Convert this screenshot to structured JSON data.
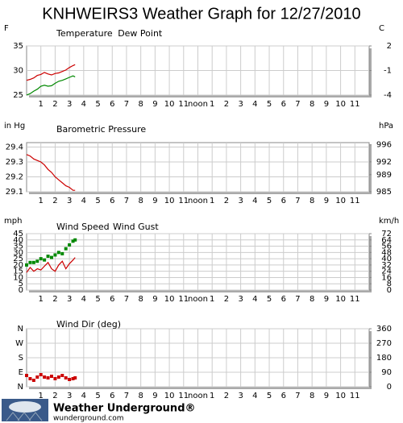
{
  "title": "KNHWEIRS3 Weather Graph for 12/27/2010",
  "logo": {
    "name": "Weather Underground®",
    "url": "wunderground.com"
  },
  "chart_data": [
    {
      "type": "line",
      "ylabel": "F",
      "y2label": "C",
      "xlim": [
        0,
        24
      ],
      "xticks": [
        {
          "value": 1,
          "label": "1"
        },
        {
          "value": 2,
          "label": "2"
        },
        {
          "value": 3,
          "label": "3"
        },
        {
          "value": 4,
          "label": "4"
        },
        {
          "value": 5,
          "label": "5"
        },
        {
          "value": 6,
          "label": "6"
        },
        {
          "value": 7,
          "label": "7"
        },
        {
          "value": 8,
          "label": "8"
        },
        {
          "value": 9,
          "label": "9"
        },
        {
          "value": 10,
          "label": "10"
        },
        {
          "value": 11,
          "label": "11"
        },
        {
          "value": 12,
          "label": "noon"
        },
        {
          "value": 13,
          "label": "1"
        },
        {
          "value": 14,
          "label": "2"
        },
        {
          "value": 15,
          "label": "3"
        },
        {
          "value": 16,
          "label": "4"
        },
        {
          "value": 17,
          "label": "5"
        },
        {
          "value": 18,
          "label": "6"
        },
        {
          "value": 19,
          "label": "7"
        },
        {
          "value": 20,
          "label": "8"
        },
        {
          "value": 21,
          "label": "9"
        },
        {
          "value": 22,
          "label": "10"
        },
        {
          "value": 23,
          "label": "11"
        }
      ],
      "ylim": [
        25,
        35
      ],
      "yticks": [
        25,
        30,
        35
      ],
      "y2lim": [
        -4,
        2
      ],
      "y2ticks": [
        -4,
        -1,
        2
      ],
      "grid": true,
      "x": [
        0,
        0.25,
        0.5,
        0.75,
        1,
        1.25,
        1.5,
        1.75,
        2,
        2.25,
        2.5,
        2.75,
        3,
        3.25,
        3.4
      ],
      "series": [
        {
          "name": "Temperature",
          "color": "#cc0000",
          "values": [
            28,
            28.2,
            28.5,
            29,
            29.2,
            29.6,
            29.3,
            29.1,
            29.4,
            29.5,
            29.8,
            30.1,
            30.6,
            31,
            31.2
          ]
        },
        {
          "name": "Dew Point",
          "color": "#008800",
          "values": [
            25,
            25.3,
            25.8,
            26.2,
            26.8,
            27,
            26.8,
            26.9,
            27.4,
            27.8,
            28,
            28.3,
            28.6,
            28.9,
            28.7
          ]
        }
      ]
    },
    {
      "type": "line",
      "ylabel": "in Hg",
      "y2label": "hPa",
      "xlim": [
        0,
        24
      ],
      "xticks": [
        {
          "value": 1,
          "label": "1"
        },
        {
          "value": 2,
          "label": "2"
        },
        {
          "value": 3,
          "label": "3"
        },
        {
          "value": 4,
          "label": "4"
        },
        {
          "value": 5,
          "label": "5"
        },
        {
          "value": 6,
          "label": "6"
        },
        {
          "value": 7,
          "label": "7"
        },
        {
          "value": 8,
          "label": "8"
        },
        {
          "value": 9,
          "label": "9"
        },
        {
          "value": 10,
          "label": "10"
        },
        {
          "value": 11,
          "label": "11"
        },
        {
          "value": 12,
          "label": "noon"
        },
        {
          "value": 13,
          "label": "1"
        },
        {
          "value": 14,
          "label": "2"
        },
        {
          "value": 15,
          "label": "3"
        },
        {
          "value": 16,
          "label": "4"
        },
        {
          "value": 17,
          "label": "5"
        },
        {
          "value": 18,
          "label": "6"
        },
        {
          "value": 19,
          "label": "7"
        },
        {
          "value": 20,
          "label": "8"
        },
        {
          "value": 21,
          "label": "9"
        },
        {
          "value": 22,
          "label": "10"
        },
        {
          "value": 23,
          "label": "11"
        }
      ],
      "ylim": [
        29.1,
        29.43
      ],
      "yticks": [
        29.1,
        29.2,
        29.3,
        29.4
      ],
      "y2lim": [
        985,
        996.5
      ],
      "y2ticks": [
        985,
        989,
        992,
        996
      ],
      "grid": true,
      "x": [
        0,
        0.25,
        0.5,
        0.75,
        1,
        1.25,
        1.5,
        1.75,
        2,
        2.25,
        2.5,
        2.75,
        3,
        3.25,
        3.4
      ],
      "series": [
        {
          "name": "Barometric Pressure",
          "color": "#cc0000",
          "values": [
            29.35,
            29.34,
            29.32,
            29.31,
            29.3,
            29.28,
            29.25,
            29.23,
            29.2,
            29.18,
            29.16,
            29.14,
            29.13,
            29.11,
            29.11
          ]
        }
      ]
    },
    {
      "type": "line",
      "ylabel": "mph",
      "y2label": "km/h",
      "xlim": [
        0,
        24
      ],
      "xticks": [
        {
          "value": 1,
          "label": "1"
        },
        {
          "value": 2,
          "label": "2"
        },
        {
          "value": 3,
          "label": "3"
        },
        {
          "value": 4,
          "label": "4"
        },
        {
          "value": 5,
          "label": "5"
        },
        {
          "value": 6,
          "label": "6"
        },
        {
          "value": 7,
          "label": "7"
        },
        {
          "value": 8,
          "label": "8"
        },
        {
          "value": 9,
          "label": "9"
        },
        {
          "value": 10,
          "label": "10"
        },
        {
          "value": 11,
          "label": "11"
        },
        {
          "value": 12,
          "label": "noon"
        },
        {
          "value": 13,
          "label": "1"
        },
        {
          "value": 14,
          "label": "2"
        },
        {
          "value": 15,
          "label": "3"
        },
        {
          "value": 16,
          "label": "4"
        },
        {
          "value": 17,
          "label": "5"
        },
        {
          "value": 18,
          "label": "6"
        },
        {
          "value": 19,
          "label": "7"
        },
        {
          "value": 20,
          "label": "8"
        },
        {
          "value": 21,
          "label": "9"
        },
        {
          "value": 22,
          "label": "10"
        },
        {
          "value": 23,
          "label": "11"
        }
      ],
      "ylim": [
        0,
        45
      ],
      "yticks": [
        0,
        5,
        10,
        15,
        20,
        25,
        30,
        35,
        40,
        45
      ],
      "y2lim": [
        0,
        72
      ],
      "y2ticks": [
        0,
        8,
        16,
        24,
        32,
        40,
        48,
        56,
        64,
        72
      ],
      "grid": true,
      "x": [
        0,
        0.25,
        0.5,
        0.75,
        1,
        1.25,
        1.5,
        1.75,
        2,
        2.25,
        2.5,
        2.75,
        3,
        3.25,
        3.4
      ],
      "series": [
        {
          "name": "Wind Speed",
          "color": "#cc0000",
          "values": [
            14,
            18,
            15,
            17,
            16,
            19,
            22,
            17,
            15,
            20,
            23,
            17,
            21,
            24,
            26
          ]
        },
        {
          "name": "Wind Gust",
          "color": "#008800",
          "type": "scatter",
          "values": [
            20,
            22,
            22,
            23,
            25,
            24,
            27,
            26,
            28,
            30,
            29,
            33,
            36,
            39,
            40
          ]
        }
      ]
    },
    {
      "type": "line",
      "xlim": [
        0,
        24
      ],
      "xticks": [
        {
          "value": 1,
          "label": "1"
        },
        {
          "value": 2,
          "label": "2"
        },
        {
          "value": 3,
          "label": "3"
        },
        {
          "value": 4,
          "label": "4"
        },
        {
          "value": 5,
          "label": "5"
        },
        {
          "value": 6,
          "label": "6"
        },
        {
          "value": 7,
          "label": "7"
        },
        {
          "value": 8,
          "label": "8"
        },
        {
          "value": 9,
          "label": "9"
        },
        {
          "value": 10,
          "label": "10"
        },
        {
          "value": 11,
          "label": "11"
        },
        {
          "value": 12,
          "label": "noon"
        },
        {
          "value": 13,
          "label": "1"
        },
        {
          "value": 14,
          "label": "2"
        },
        {
          "value": 15,
          "label": "3"
        },
        {
          "value": 16,
          "label": "4"
        },
        {
          "value": 17,
          "label": "5"
        },
        {
          "value": 18,
          "label": "6"
        },
        {
          "value": 19,
          "label": "7"
        },
        {
          "value": 20,
          "label": "8"
        },
        {
          "value": 21,
          "label": "9"
        },
        {
          "value": 22,
          "label": "10"
        },
        {
          "value": 23,
          "label": "11"
        }
      ],
      "ylim": [
        0,
        360
      ],
      "yticks": [
        {
          "value": 0,
          "label": "N"
        },
        {
          "value": 90,
          "label": "E"
        },
        {
          "value": 180,
          "label": "S"
        },
        {
          "value": 270,
          "label": "W"
        },
        {
          "value": 360,
          "label": "N"
        }
      ],
      "y2lim": [
        0,
        360
      ],
      "y2ticks": [
        0,
        90,
        180,
        270,
        360
      ],
      "grid": true,
      "x": [
        0,
        0.25,
        0.5,
        0.75,
        1,
        1.25,
        1.5,
        1.75,
        2,
        2.25,
        2.5,
        2.75,
        3,
        3.25,
        3.4
      ],
      "series": [
        {
          "name": "Wind Dir (deg)",
          "color": "#cc0000",
          "type": "scatter",
          "values": [
            70,
            50,
            40,
            60,
            75,
            60,
            55,
            65,
            50,
            60,
            70,
            55,
            45,
            50,
            55
          ]
        }
      ]
    }
  ]
}
